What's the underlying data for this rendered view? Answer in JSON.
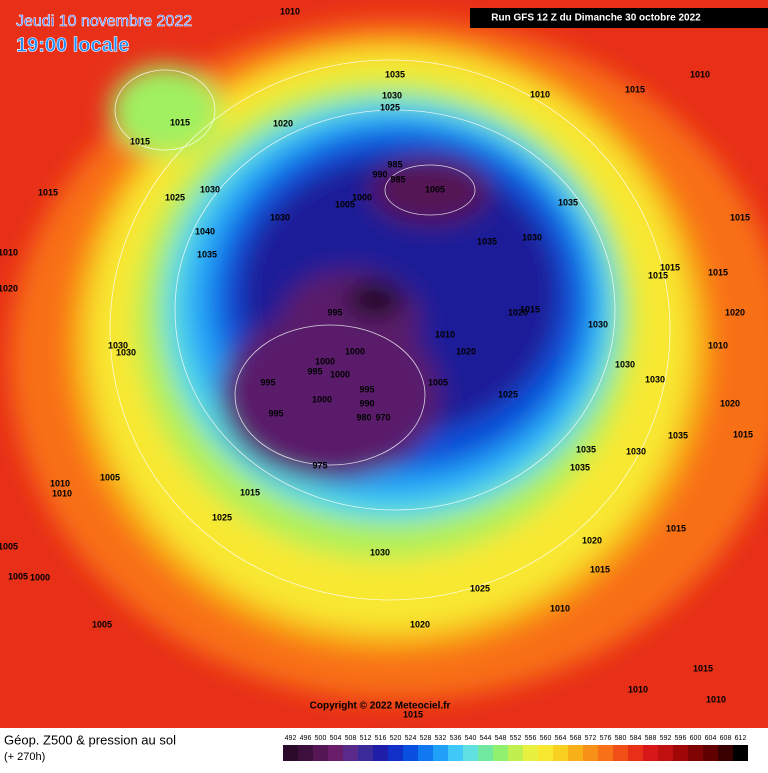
{
  "header": {
    "date": "Jeudi 10 novembre 2022",
    "time": "19:00 locale",
    "run": "Run GFS 12 Z du Dimanche 30 octobre 2022"
  },
  "map": {
    "pressure_labels": [
      1010,
      1035,
      1030,
      1025,
      1010,
      1010,
      1015,
      1015,
      1015,
      1020,
      1015,
      1025,
      1030,
      1040,
      1035,
      1030,
      985,
      990,
      985,
      1005,
      1005,
      1000,
      1035,
      1035,
      1030,
      1015,
      1015,
      1015,
      1015,
      995,
      1000,
      1010,
      1020,
      1020,
      1015,
      1030,
      1020,
      1010,
      1030,
      1030,
      1020,
      1015,
      1005,
      1025,
      995,
      1000,
      995,
      1000,
      995,
      1000,
      990,
      980,
      970,
      995,
      975,
      1035,
      1030,
      1035,
      1035,
      1015,
      1025,
      1005,
      1010,
      1010,
      1010,
      1020,
      1030,
      1030,
      1015,
      1020,
      1015,
      1030,
      1025,
      1010,
      1020,
      1015,
      1005,
      1005,
      1005,
      1000,
      1015,
      1010,
      1010
    ]
  },
  "copyright": "Copyright © 2022 Meteociel.fr",
  "legend": {
    "title": "Géop. Z500 & pression au sol",
    "lead_time": "(+ 270h)",
    "scale": [
      492,
      496,
      500,
      504,
      508,
      512,
      516,
      520,
      524,
      528,
      532,
      536,
      540,
      544,
      548,
      552,
      556,
      560,
      564,
      568,
      572,
      576,
      580,
      584,
      588,
      592,
      596,
      600,
      604,
      608,
      612
    ],
    "colors": [
      "#2b0b2b",
      "#3d0f3d",
      "#541654",
      "#6a1e6a",
      "#5a2a8a",
      "#3a2a9a",
      "#1e1ea8",
      "#1030c8",
      "#0a50e0",
      "#1078f0",
      "#20a0f8",
      "#40c8f8",
      "#60e0e0",
      "#70e8a0",
      "#90f070",
      "#c0f050",
      "#e8f040",
      "#f8e830",
      "#f8d020",
      "#f8b018",
      "#f89018",
      "#f87018",
      "#f05018",
      "#e83018",
      "#d81818",
      "#c01010",
      "#a00808",
      "#800404",
      "#600000",
      "#380000",
      "#000000"
    ]
  }
}
